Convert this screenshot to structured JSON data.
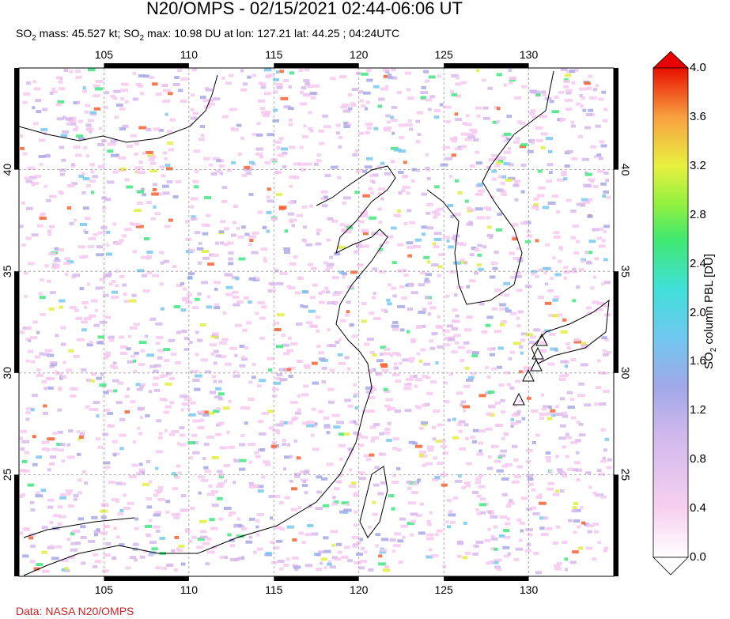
{
  "title": "N20/OMPS - 02/15/2021 02:44-06:06 UT",
  "subtitle": {
    "so2": "SO",
    "sub": "2",
    "mass_text": " mass: 45.527 kt; SO",
    "max_text": " max: 10.98 DU at lon: 127.21 lat: 44.25 ; 04:24UTC"
  },
  "credit": "Data: NASA N20/OMPS",
  "map": {
    "lon_ticks": [
      "105",
      "110",
      "115",
      "120",
      "125",
      "130"
    ],
    "lat_ticks": [
      "40",
      "35",
      "30",
      "25"
    ],
    "lon_range": [
      100,
      135
    ],
    "lat_range": [
      20,
      45
    ],
    "volcano_markers": 5
  },
  "colorbar": {
    "title_prefix": "SO",
    "title_sub": "2",
    "title_suffix": " column PBL [DU]",
    "ticks": [
      "4.0",
      "3.6",
      "3.2",
      "2.8",
      "2.4",
      "2.0",
      "1.6",
      "1.2",
      "0.8",
      "0.4",
      "0.0"
    ],
    "range": [
      0.0,
      4.0
    ],
    "colors": [
      "#ffffff",
      "#f7c8f0",
      "#d7b8ec",
      "#a8a8e8",
      "#78c8f0",
      "#40e0e0",
      "#40e880",
      "#80f040",
      "#e0f040",
      "#f8b840",
      "#f86030",
      "#e80000"
    ]
  }
}
